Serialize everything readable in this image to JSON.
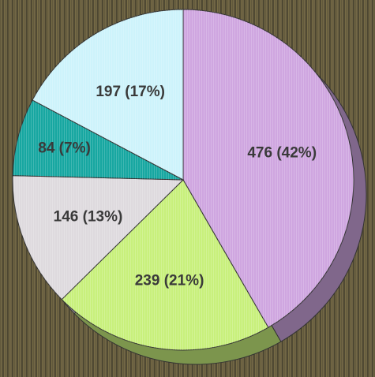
{
  "chart_data": {
    "type": "pie",
    "values": [
      476,
      239,
      146,
      84,
      197
    ],
    "value_labels": [
      "476 (42%)",
      "239 (21%)",
      "146 (13%)",
      "84 (7%)",
      "197 (17%)"
    ],
    "colors": [
      "#cfa6e0",
      "#c8f07c",
      "#dedade",
      "#17a7a1",
      "#cdf3fb"
    ]
  }
}
